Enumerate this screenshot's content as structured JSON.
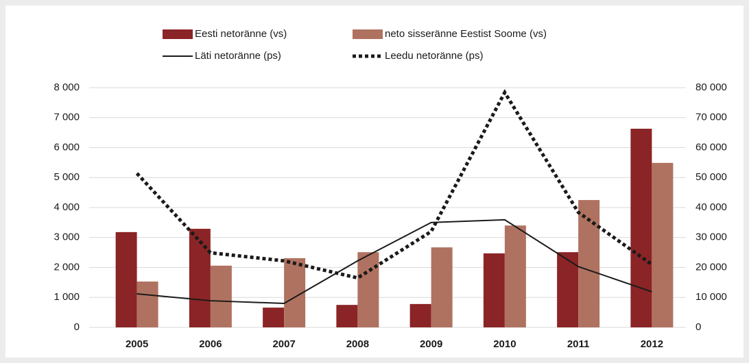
{
  "chart_data": {
    "type": "bar_line",
    "categories": [
      "2005",
      "2006",
      "2007",
      "2008",
      "2009",
      "2010",
      "2011",
      "2012"
    ],
    "series": [
      {
        "name": "Eesti netoränne (vs)",
        "type": "bar",
        "color": "#8b2426",
        "values": [
          3180,
          3290,
          660,
          750,
          780,
          2470,
          2510,
          6630
        ]
      },
      {
        "name": "neto sisseränne Eestist Soome (vs)",
        "type": "bar",
        "color": "#b07260",
        "values": [
          1530,
          2060,
          2310,
          2510,
          2670,
          3400,
          4250,
          5490
        ]
      },
      {
        "name": "Läti netoränne (ps)",
        "type": "line",
        "axis": "y2",
        "color": "#1a1a1a",
        "dash": "solid",
        "values": [
          11200,
          8900,
          8000,
          22200,
          35000,
          35900,
          20300,
          11900
        ]
      },
      {
        "name": "Leedu netoränne (ps)",
        "type": "line",
        "axis": "y2",
        "color": "#1a1a1a",
        "dash": "dotted",
        "values": [
          51400,
          24900,
          22200,
          16500,
          32000,
          78400,
          38400,
          21000
        ]
      }
    ],
    "ylim": [
      0,
      8000
    ],
    "yticks": [
      0,
      {
        "value": 1000,
        "label": "1 000"
      },
      {
        "value": 2000,
        "label": "2 000"
      },
      {
        "value": 3000,
        "label": "3 000"
      },
      {
        "value": 4000,
        "label": "4 000"
      },
      {
        "value": 5000,
        "label": "5 000"
      },
      {
        "value": 6000,
        "label": "6 000"
      },
      {
        "value": 7000,
        "label": "7 000"
      },
      {
        "value": 8000,
        "label": "8 000"
      }
    ],
    "y2lim": [
      0,
      80000
    ],
    "y2ticks": [
      0,
      {
        "value": 10000,
        "label": "10 000"
      },
      {
        "value": 20000,
        "label": "20 000"
      },
      {
        "value": 30000,
        "label": "30 000"
      },
      {
        "value": 40000,
        "label": "40 000"
      },
      {
        "value": 50000,
        "label": "50 000"
      },
      {
        "value": 60000,
        "label": "60 000"
      },
      {
        "value": 70000,
        "label": "70 000"
      },
      {
        "value": 80000,
        "label": "80 000"
      }
    ],
    "grid": true
  }
}
